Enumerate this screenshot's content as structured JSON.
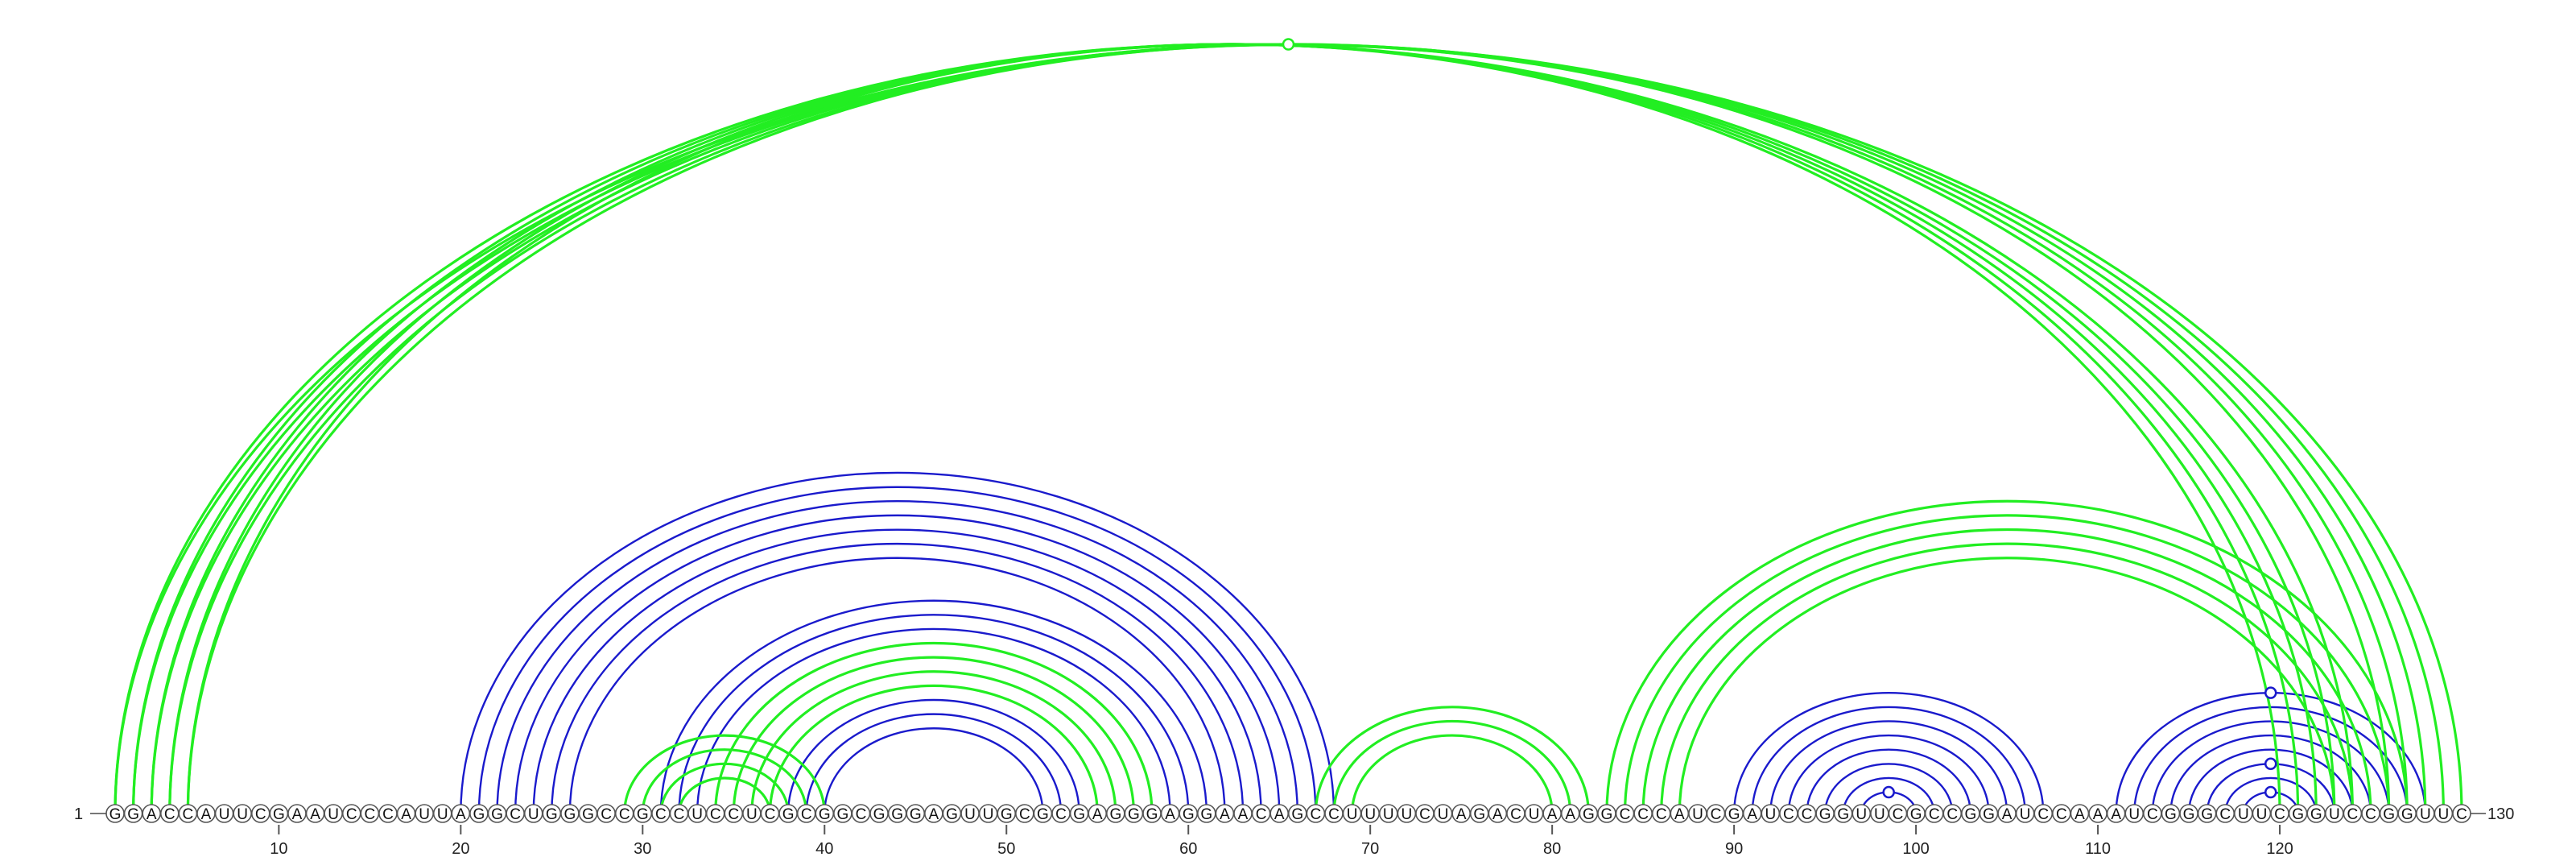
{
  "sequence": "GGACCAUUCGAAUCCCAUUAGGCUGGGCCGCCUCCUCGCGGCGGGAGUUGCGCGAGGGAGGAACAGCCUUUUCUAGACUAAGGCCCAUCGAUCCGGUUCGCCGGAUCCAAAUCGGGCUUCGGUCCGGUUC",
  "start_label": "1",
  "end_label": "130",
  "ticks": [
    "10",
    "20",
    "30",
    "40",
    "50",
    "60",
    "70",
    "80",
    "90",
    "100",
    "110",
    "120"
  ],
  "colors": {
    "green": "#22ee22",
    "blue": "#1a1acc",
    "axis": "#777777"
  },
  "chart_data": {
    "type": "arc-diagram",
    "length": 130,
    "green_pairs": [
      [
        1,
        130
      ],
      [
        2,
        129
      ],
      [
        3,
        128
      ],
      [
        4,
        127
      ],
      [
        5,
        126
      ],
      [
        1,
        124
      ],
      [
        2,
        123
      ],
      [
        3,
        122
      ],
      [
        4,
        121
      ],
      [
        5,
        120
      ],
      [
        29,
        40
      ],
      [
        30,
        39
      ],
      [
        31,
        38
      ],
      [
        32,
        37
      ],
      [
        34,
        58
      ],
      [
        35,
        57
      ],
      [
        36,
        56
      ],
      [
        37,
        55
      ],
      [
        67,
        82
      ],
      [
        68,
        81
      ],
      [
        69,
        80
      ],
      [
        83,
        127
      ],
      [
        84,
        126
      ],
      [
        85,
        125
      ],
      [
        86,
        124
      ],
      [
        87,
        123
      ]
    ],
    "blue_pairs": [
      [
        20,
        68
      ],
      [
        21,
        67
      ],
      [
        22,
        66
      ],
      [
        23,
        65
      ],
      [
        24,
        64
      ],
      [
        25,
        63
      ],
      [
        26,
        62
      ],
      [
        31,
        61
      ],
      [
        32,
        60
      ],
      [
        33,
        59
      ],
      [
        34,
        58
      ],
      [
        35,
        57
      ],
      [
        36,
        56
      ],
      [
        37,
        55
      ],
      [
        38,
        54
      ],
      [
        39,
        53
      ],
      [
        40,
        52
      ],
      [
        90,
        107
      ],
      [
        91,
        106
      ],
      [
        92,
        105
      ],
      [
        93,
        104
      ],
      [
        94,
        103
      ],
      [
        95,
        102
      ],
      [
        96,
        101
      ],
      [
        97,
        100
      ],
      [
        111,
        128
      ],
      [
        112,
        127
      ],
      [
        113,
        126
      ],
      [
        114,
        125
      ],
      [
        115,
        124
      ],
      [
        116,
        123
      ],
      [
        117,
        122
      ],
      [
        118,
        121
      ]
    ],
    "green_markers": [
      [
        1,
        130
      ]
    ],
    "blue_markers": [
      [
        118,
        121
      ],
      [
        116,
        123
      ],
      [
        97,
        100
      ],
      [
        111,
        128
      ]
    ]
  }
}
